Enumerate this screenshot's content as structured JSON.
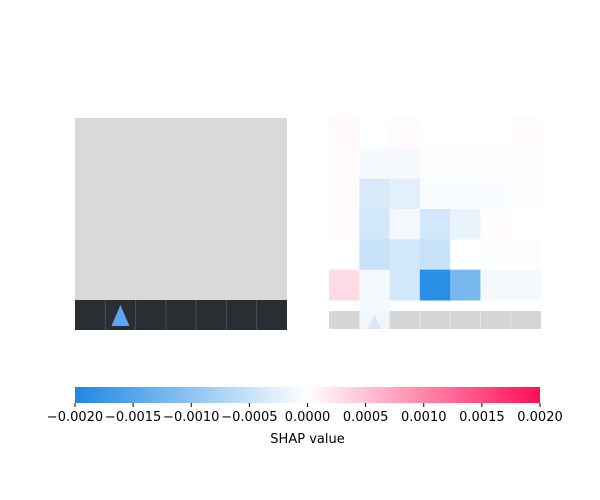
{
  "chart_data": {
    "type": "heatmap",
    "title": "",
    "panels": [
      {
        "name": "",
        "kind": "input-image",
        "background_color": "#d9d9d9",
        "strip_color": "#2a2e33",
        "strip_columns": 7,
        "marker": {
          "shape": "triangle",
          "color": "#5aa6f5",
          "column": 1
        }
      },
      {
        "name": "",
        "kind": "shap-heatmap",
        "rows": 6,
        "cols": 7,
        "values": [
          [
            5e-05,
            0.0,
            3e-05,
            0.0,
            0.0,
            0.0,
            4e-05
          ],
          [
            3e-05,
            -8e-05,
            -8e-05,
            -4e-05,
            -4e-05,
            -3e-05,
            -2e-05
          ],
          [
            3e-05,
            -0.00035,
            -0.00025,
            -5e-05,
            -5e-05,
            -5e-05,
            -2e-05
          ],
          [
            4e-05,
            -0.0004,
            -0.0001,
            -0.0004,
            -0.0002,
            4e-05,
            0.0
          ],
          [
            0.0,
            -0.0005,
            -0.0004,
            -0.0005,
            0.0,
            -3e-05,
            -3e-05
          ],
          [
            0.0003,
            -0.0001,
            -0.0004,
            -0.0019,
            -0.0012,
            -0.0001,
            -0.0001
          ]
        ],
        "strip_values": [
          0.0,
          -0.0001,
          0.0,
          0.0,
          0.0,
          0.0,
          0.0
        ],
        "strip_color": "#d6d6d6",
        "marker": {
          "shape": "triangle",
          "color": "#dde6f4",
          "column": 1
        }
      }
    ],
    "colorbar": {
      "label": "SHAP value",
      "min": -0.002,
      "max": 0.002,
      "ticks": [
        "-0.0020",
        "-0.0015",
        "-0.0010",
        "-0.0005",
        "0.0000",
        "0.0005",
        "0.0010",
        "0.0015",
        "0.0020"
      ],
      "tick_values": [
        -0.002,
        -0.0015,
        -0.001,
        -0.0005,
        0.0,
        0.0005,
        0.001,
        0.0015,
        0.002
      ],
      "negative_color": "#1e88e5",
      "neutral_color": "#ffffff",
      "positive_color": "#ff0d57"
    }
  }
}
